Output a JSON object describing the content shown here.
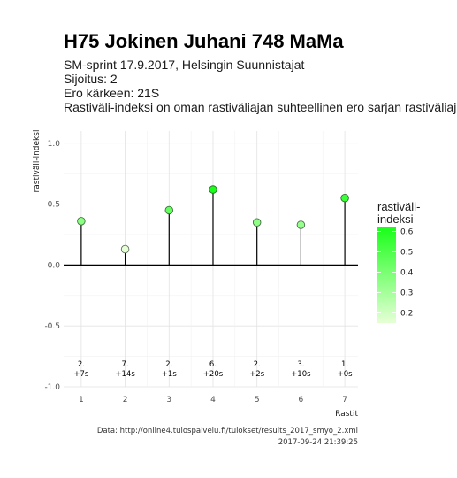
{
  "chart_data": {
    "type": "scatter",
    "title": "H75 Jokinen Juhani 748 MaMa",
    "subtitle_lines": [
      "SM-sprint 17.9.2017, Helsingin Suunnistajat",
      "Sijoitus: 2",
      "Ero kärkeen: 21S",
      "Rastiväli-indeksi on oman rastiväliajan suhteellinen ero sarjan rastiväliajan kes"
    ],
    "xlabel": "Rastit",
    "ylabel": "rastiväli-indeksi",
    "x": [
      1,
      2,
      3,
      4,
      5,
      6,
      7
    ],
    "values": [
      0.36,
      0.13,
      0.45,
      0.62,
      0.35,
      0.33,
      0.55
    ],
    "x_ticks": [
      "1",
      "2",
      "3",
      "4",
      "5",
      "6",
      "7"
    ],
    "y_ticks": [
      "1.0",
      "0.5",
      "0.0",
      "-0.5",
      "-1.0"
    ],
    "xlim": [
      0.6,
      7.3
    ],
    "ylim": [
      -1.0,
      1.1
    ],
    "annotations": [
      {
        "rank": "2.",
        "diff": "+7s"
      },
      {
        "rank": "7.",
        "diff": "+14s"
      },
      {
        "rank": "2.",
        "diff": "+1s"
      },
      {
        "rank": "6.",
        "diff": "+20s"
      },
      {
        "rank": "2.",
        "diff": "+2s"
      },
      {
        "rank": "3.",
        "diff": "+10s"
      },
      {
        "rank": "1.",
        "diff": "+0s"
      }
    ],
    "legend": {
      "title_lines": [
        "rastiväli-",
        "indeksi"
      ],
      "ticks": [
        "0.6",
        "0.5",
        "0.4",
        "0.3",
        "0.2"
      ],
      "tick_values": [
        0.6,
        0.5,
        0.4,
        0.3,
        0.2
      ],
      "placement": "right",
      "color_low": "#e6ffd6",
      "color_high": "#1aff1a"
    },
    "grid": true,
    "caption_lines": [
      "Data: http://online4.tulospalvelu.fi/tulokset/results_2017_smyo_2.xml",
      "2017-09-24 21:39:25"
    ]
  }
}
